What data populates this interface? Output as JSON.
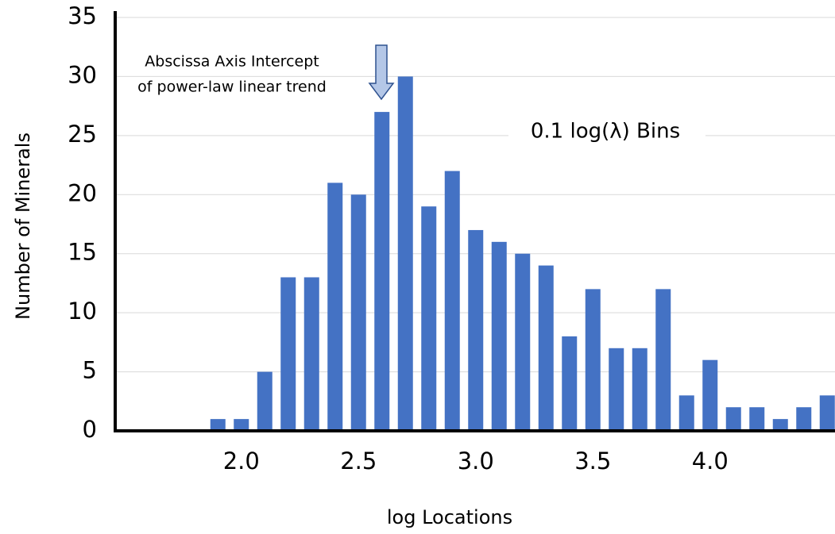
{
  "chart_data": {
    "type": "bar",
    "x_label": "log Locations",
    "y_label": "Number of Minerals",
    "annotations": [
      "Abscissa Axis Intercept",
      "of power-law linear trend",
      "0.1 log(λ) Bins"
    ],
    "categories": [
      null,
      null,
      null,
      null,
      null,
      "2.0",
      null,
      null,
      null,
      null,
      "2.5",
      null,
      null,
      null,
      null,
      "3.0",
      null,
      null,
      null,
      null,
      "3.5",
      null,
      null,
      null,
      null,
      "4.0",
      null,
      null,
      null,
      null,
      null
    ],
    "values": [
      0,
      0,
      0,
      0,
      1,
      1,
      5,
      13,
      13,
      21,
      20,
      27,
      30,
      19,
      22,
      17,
      16,
      15,
      14,
      8,
      12,
      7,
      7,
      12,
      3,
      6,
      2,
      2,
      1,
      2,
      3
    ],
    "color": "#4472c4",
    "ylim": [
      0,
      35
    ],
    "yticks": [
      0,
      5,
      10,
      15,
      20,
      25,
      30,
      35
    ],
    "grid": true
  }
}
